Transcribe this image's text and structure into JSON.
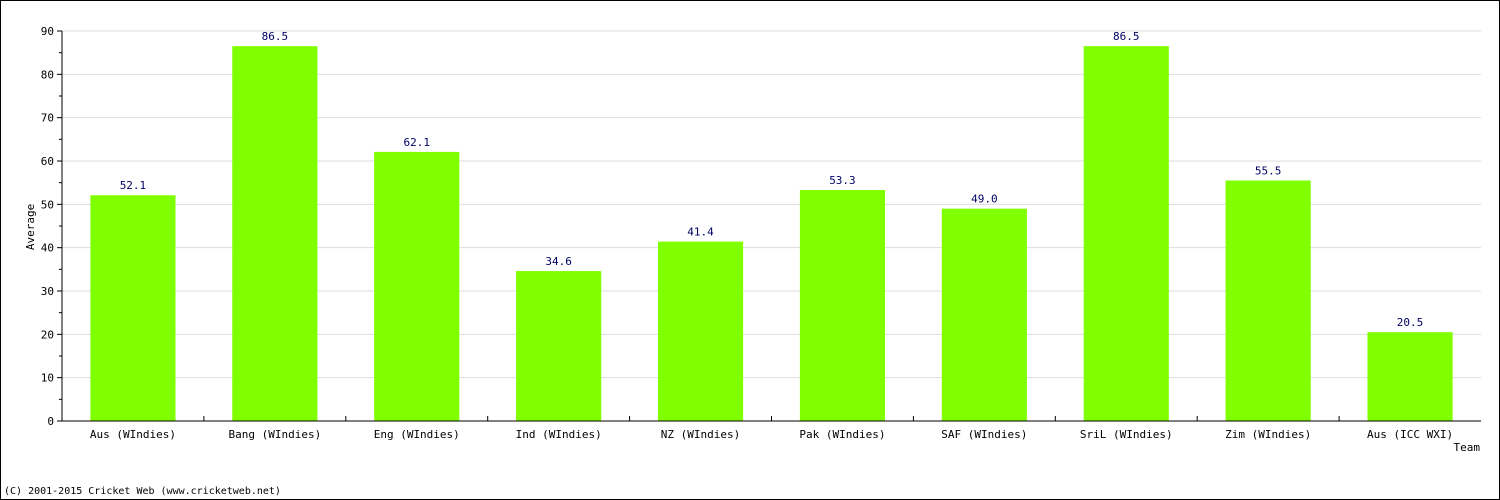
{
  "chart_data": {
    "type": "bar",
    "categories": [
      "Aus (WIndies)",
      "Bang (WIndies)",
      "Eng (WIndies)",
      "Ind (WIndies)",
      "NZ (WIndies)",
      "Pak (WIndies)",
      "SAF (WIndies)",
      "SriL (WIndies)",
      "Zim (WIndies)",
      "Aus (ICC WXI)"
    ],
    "values": [
      52.1,
      86.5,
      62.1,
      34.6,
      41.4,
      53.3,
      49.0,
      86.5,
      55.5,
      20.5
    ],
    "value_labels": [
      "52.1",
      "86.5",
      "62.1",
      "34.6",
      "41.4",
      "53.3",
      "49.0",
      "86.5",
      "55.5",
      "20.5"
    ],
    "xlabel": "Team",
    "ylabel": "Average",
    "ylim": [
      0,
      90
    ],
    "yticks": [
      0,
      10,
      20,
      30,
      40,
      50,
      60,
      70,
      80,
      90
    ],
    "grid": true,
    "bar_color": "#80ff00",
    "value_label_color": "#000066"
  },
  "footer": {
    "copyright": "(C) 2001-2015 Cricket Web (www.cricketweb.net)"
  }
}
